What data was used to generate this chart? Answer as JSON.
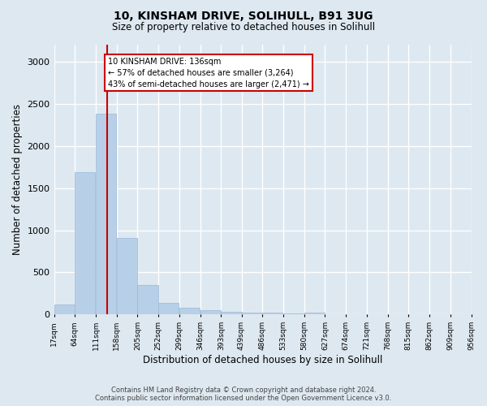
{
  "title1": "10, KINSHAM DRIVE, SOLIHULL, B91 3UG",
  "title2": "Size of property relative to detached houses in Solihull",
  "xlabel": "Distribution of detached houses by size in Solihull",
  "ylabel": "Number of detached properties",
  "footer1": "Contains HM Land Registry data © Crown copyright and database right 2024.",
  "footer2": "Contains public sector information licensed under the Open Government Licence v3.0.",
  "annotation_title": "10 KINSHAM DRIVE: 136sqm",
  "annotation_line1": "← 57% of detached houses are smaller (3,264)",
  "annotation_line2": "43% of semi-detached houses are larger (2,471) →",
  "property_size": 136,
  "bar_color": "#b8cfe8",
  "bar_edge_color": "#9ab8d8",
  "vline_color": "#cc0000",
  "background_color": "#dde8f0",
  "grid_color": "white",
  "bins": [
    17,
    64,
    111,
    158,
    205,
    252,
    299,
    346,
    393,
    439,
    486,
    533,
    580,
    627,
    674,
    721,
    768,
    815,
    862,
    909,
    956
  ],
  "bar_heights": [
    120,
    1690,
    2380,
    910,
    350,
    140,
    80,
    50,
    35,
    25,
    20,
    15,
    20,
    0,
    0,
    0,
    0,
    0,
    0,
    0
  ],
  "ylim": [
    0,
    3200
  ],
  "yticks": [
    0,
    500,
    1000,
    1500,
    2000,
    2500,
    3000
  ],
  "figsize": [
    6.0,
    5.0
  ],
  "dpi": 100
}
